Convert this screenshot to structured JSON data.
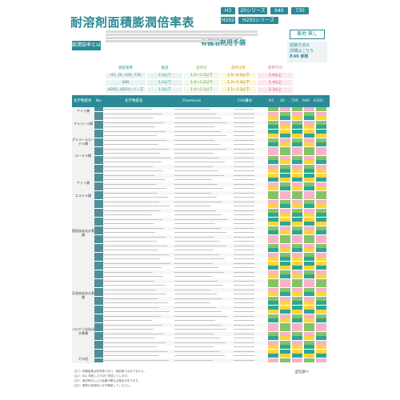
{
  "title": "耐溶剤面積膨潤倍率表",
  "subheading": "有機溶剤用手袋",
  "tags": [
    "H3",
    "20シリーズ",
    "640",
    "730",
    "H202",
    "H203シリーズ"
  ],
  "intro_tag": "膨潤倍率とは",
  "ura": "裏地 無し",
  "shiken": {
    "line1": "試験方法の",
    "line2": "詳細はこちら",
    "link": "P.49 参照"
  },
  "legend": {
    "header": [
      "測定基準",
      "推奨",
      "使用可",
      "使用注意",
      "使用不可"
    ],
    "rows": [
      {
        "label": "H3, 20, H20, 730",
        "values": [
          "1.0以下",
          "1.0〜1.5以下",
          "1.5〜2.0以下",
          "2.0以上"
        ]
      },
      {
        "label": "640",
        "values": [
          "1.0以下",
          "1.0〜1.2以下",
          "1.2〜1.4以下",
          "1.4以上"
        ]
      },
      {
        "label": "H202, H203シリーズ",
        "values": [
          "1.0以下",
          "1.0〜1.1以下",
          "1.1〜1.2以下",
          "1.2以上"
        ]
      }
    ],
    "colors": {
      "recommend": "#2ea58f",
      "usable": "#86c26a",
      "caution": "#ffd33a",
      "ng": "#f5b2c8"
    }
  },
  "table": {
    "header": [
      "化学物質系",
      "No.",
      "化学物質名",
      "Chemicals",
      "CAS番号",
      "H3",
      "20",
      "730",
      "640",
      "H202"
    ],
    "categories": [
      "アミド類",
      "アルコール類",
      "グリコールエーテル類",
      "エーテル類",
      "ケトン類",
      "エステル類",
      "脂肪族炭化水素類",
      "芳香族炭化水素類",
      "ハロゲン化炭化水素類",
      "その他"
    ]
  },
  "footnotes": [
    "（注1）試験結果は参考値であり、保証値ではありません。",
    "（注2）JISに準拠した方法で測定しています。",
    "（注3）使用条件により結果が異なる場合があります。",
    "（注4）実際の使用前に必ず確認してください。"
  ],
  "right_note": "当社調べ"
}
